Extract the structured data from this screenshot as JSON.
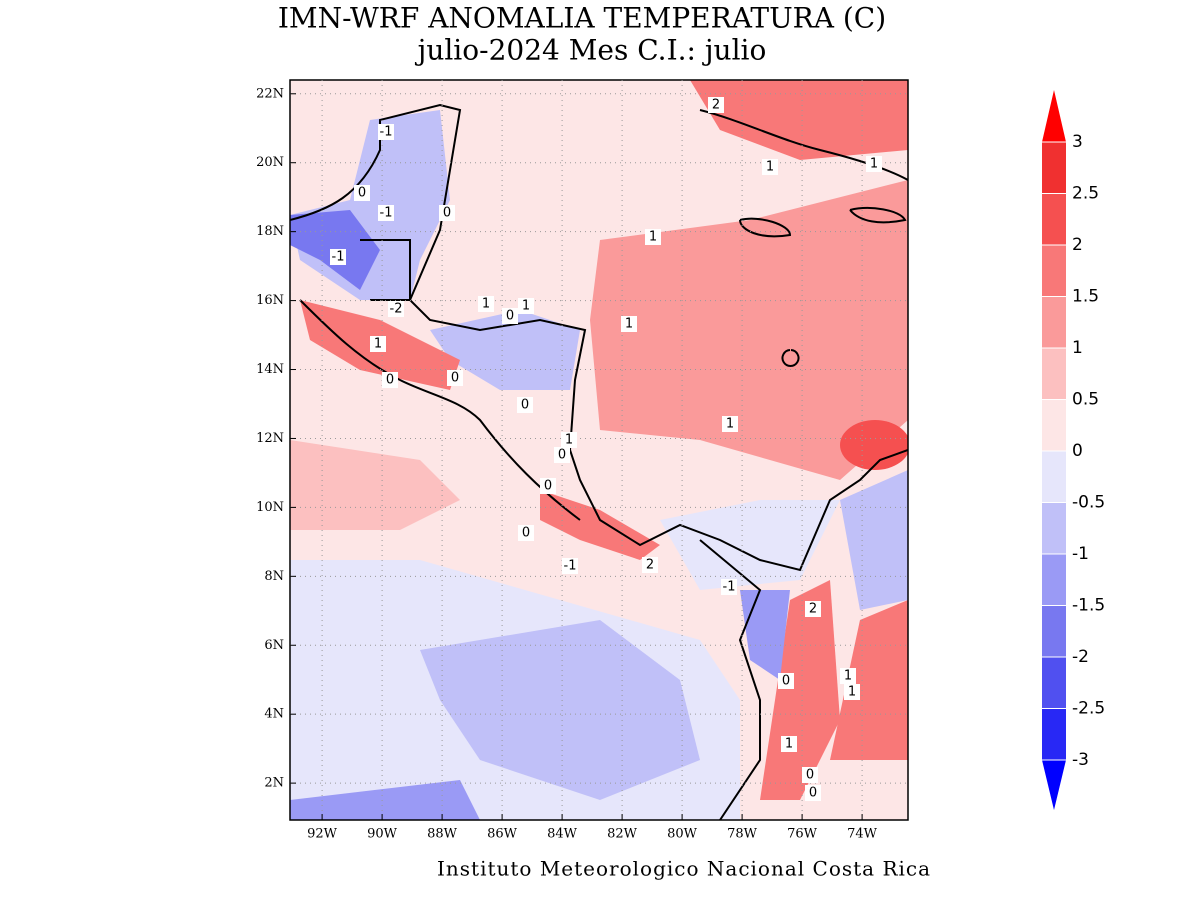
{
  "title": [
    "IMN-WRF  ANOMALIA TEMPERATURA (C)",
    "julio-2024 Mes C.I.: julio"
  ],
  "map": {
    "xlim": [
      -93.07,
      -72.47
    ],
    "ylim": [
      0.93,
      22.4
    ],
    "xticks": [
      {
        "value": -92,
        "label": "92W"
      },
      {
        "value": -90,
        "label": "90W"
      },
      {
        "value": -88,
        "label": "88W"
      },
      {
        "value": -86,
        "label": "86W"
      },
      {
        "value": -84,
        "label": "84W"
      },
      {
        "value": -82,
        "label": "82W"
      },
      {
        "value": -80,
        "label": "80W"
      },
      {
        "value": -78,
        "label": "78W"
      },
      {
        "value": -76,
        "label": "76W"
      },
      {
        "value": -74,
        "label": "74W"
      }
    ],
    "yticks": [
      {
        "value": 2,
        "label": "2N"
      },
      {
        "value": 4,
        "label": "4N"
      },
      {
        "value": 6,
        "label": "6N"
      },
      {
        "value": 8,
        "label": "8N"
      },
      {
        "value": 10,
        "label": "10N"
      },
      {
        "value": 12,
        "label": "12N"
      },
      {
        "value": 14,
        "label": "14N"
      },
      {
        "value": 16,
        "label": "16N"
      },
      {
        "value": 18,
        "label": "18N"
      },
      {
        "value": 20,
        "label": "20N"
      },
      {
        "value": 22,
        "label": "22N"
      }
    ],
    "grid": true,
    "contour_labels": [
      -1,
      0,
      -1,
      0,
      -1,
      -2,
      1,
      0,
      0,
      1,
      1,
      1,
      2,
      1,
      1,
      1,
      1,
      1,
      0,
      0,
      0,
      0,
      0,
      -1,
      2,
      -1,
      2,
      0,
      1,
      1,
      1,
      0,
      0
    ]
  },
  "colorbar": {
    "levels": [
      -3,
      -2.5,
      -2,
      -1.5,
      -1,
      -0.5,
      0,
      0.5,
      1,
      1.5,
      2,
      2.5,
      3
    ],
    "colors": [
      "#2828f5",
      "#5050f0",
      "#7878f0",
      "#9a9af5",
      "#c0c0f8",
      "#e6e6fb",
      "#fde6e6",
      "#fcc0c0",
      "#fa9a9a",
      "#f87878",
      "#f55050",
      "#f03030"
    ],
    "under_color": "#0000ff",
    "over_color": "#ff0000"
  },
  "footer": "Instituto Meteorologico Nacional Costa Rica"
}
